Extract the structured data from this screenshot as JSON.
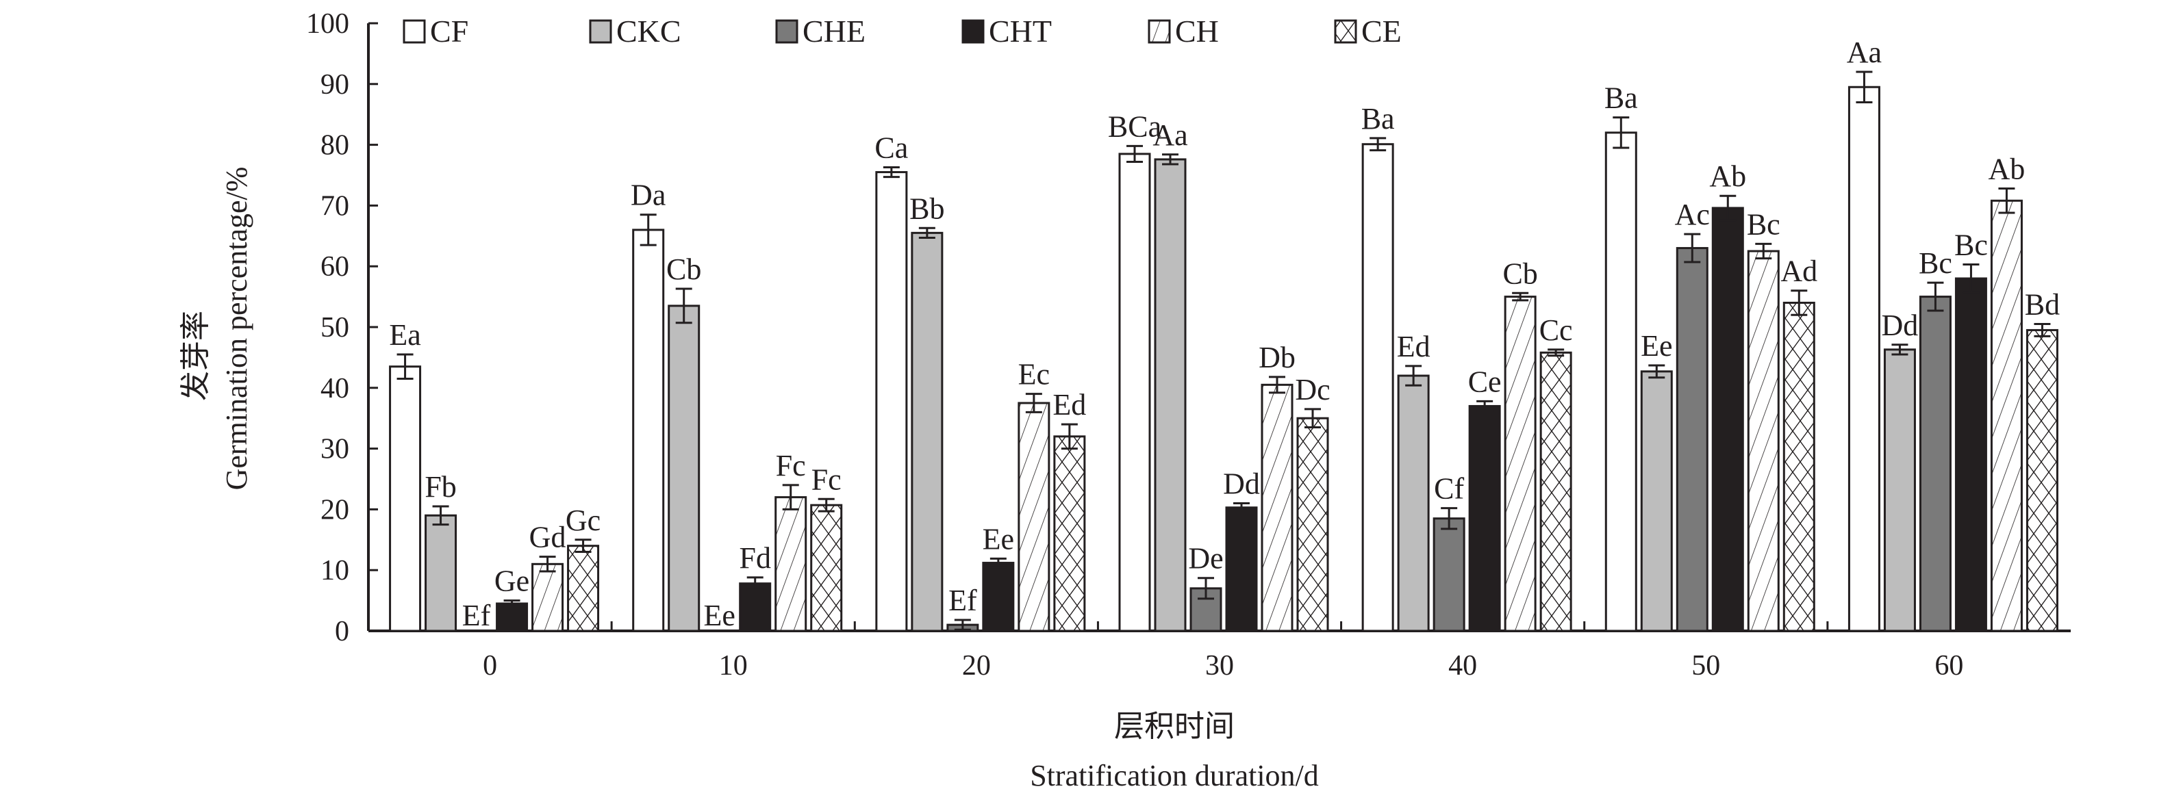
{
  "chart_data": {
    "type": "bar",
    "categories": [
      "0",
      "10",
      "20",
      "30",
      "40",
      "50",
      "60"
    ],
    "ylabel_cn": "发芽率",
    "ylabel": "Germination percentage/%",
    "xlabel_cn": "层积时间",
    "xlabel": "Stratification duration/d",
    "ylim": [
      0,
      100
    ],
    "yticks": [
      "0",
      "10",
      "20",
      "30",
      "40",
      "50",
      "60",
      "70",
      "80",
      "90",
      "100"
    ],
    "grid": false,
    "legend_position": "top",
    "series": [
      {
        "name": "CF",
        "fill": "#ffffff",
        "pattern": "none",
        "values": [
          43.5,
          66,
          75.5,
          78.5,
          80.1,
          82,
          89.5
        ],
        "errors": [
          2,
          2.5,
          0.8,
          1.3,
          1,
          2.5,
          2.5
        ],
        "letters": [
          "Ea",
          "Da",
          "Ca",
          "BCa",
          "Ba",
          "Ba",
          "Aa"
        ]
      },
      {
        "name": "CKC",
        "fill": "#bdbdbd",
        "pattern": "none",
        "values": [
          19,
          53.5,
          65.5,
          77.6,
          42,
          42.7,
          46.3
        ],
        "errors": [
          1.5,
          2.8,
          0.8,
          0.8,
          1.6,
          1,
          0.8
        ],
        "letters": [
          "Fb",
          "Cb",
          "Bb",
          "Aa",
          "Ed",
          "Ee",
          "Dd"
        ]
      },
      {
        "name": "CHE",
        "fill": "#7a7a7a",
        "pattern": "none",
        "values": [
          0,
          0,
          1,
          7,
          18.5,
          63,
          55
        ],
        "errors": [
          0,
          0,
          0.8,
          1.7,
          1.7,
          2.3,
          2.3
        ],
        "letters": [
          "Ef",
          "Ee",
          "Ef",
          "De",
          "Cf",
          "Ac",
          "Bc"
        ]
      },
      {
        "name": "CHT",
        "fill": "#231f20",
        "pattern": "none",
        "values": [
          4.5,
          7.8,
          11.2,
          20.3,
          37,
          69.6,
          58
        ],
        "errors": [
          0.5,
          1,
          0.7,
          0.7,
          0.8,
          2,
          2.3
        ],
        "letters": [
          "Ge",
          "Fd",
          "Ee",
          "Dd",
          "Ce",
          "Ab",
          "Bc"
        ]
      },
      {
        "name": "CH",
        "fill": "#ffffff",
        "pattern": "diagonal",
        "values": [
          11,
          22,
          37.5,
          40.5,
          55,
          62.5,
          70.8
        ],
        "errors": [
          1.2,
          2,
          1.5,
          1.3,
          0.6,
          1.2,
          2
        ],
        "letters": [
          "Gd",
          "Fc",
          "Ec",
          "Db",
          "Cb",
          "Bc",
          "Ab"
        ]
      },
      {
        "name": "CE",
        "fill": "#ffffff",
        "pattern": "crosshatch",
        "values": [
          14,
          20.7,
          32,
          35,
          45.8,
          54,
          49.5
        ],
        "errors": [
          1,
          1,
          2,
          1.5,
          0.5,
          2,
          1
        ],
        "letters": [
          "Gc",
          "Fc",
          "Ed",
          "Dc",
          "Cc",
          "Ad",
          "Bd"
        ]
      }
    ]
  }
}
